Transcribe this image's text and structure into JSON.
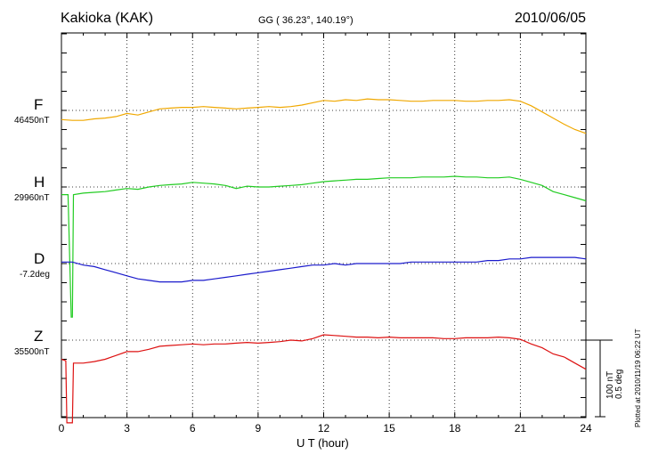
{
  "header": {
    "station": "Kakioka (KAK)",
    "coords": "GG ( 36.23°, 140.19°)",
    "date": "2010/06/05"
  },
  "footer": {
    "plotted": "Plotted at 2010/11/19 06:22 UT"
  },
  "scale_bar": {
    "label1": "100 nT",
    "label2": "0.5 deg"
  },
  "chart_data": {
    "type": "line",
    "xlabel": "U T (hour)",
    "xlim": [
      0,
      24
    ],
    "xticks": [
      "0",
      "3",
      "6",
      "9",
      "12",
      "15",
      "18",
      "21",
      "24"
    ],
    "grid": "dotted",
    "series": [
      {
        "name": "F",
        "baseline": "46450nT",
        "color": "#f0a800",
        "unit": "nT",
        "x": [
          0,
          0.5,
          1,
          1.5,
          2,
          2.5,
          3,
          3.5,
          4,
          4.5,
          5,
          5.5,
          6,
          6.5,
          7,
          7.5,
          8,
          8.5,
          9,
          9.5,
          10,
          10.5,
          11,
          11.5,
          12,
          12.5,
          13,
          13.5,
          14,
          14.5,
          15,
          15.5,
          16,
          16.5,
          17,
          17.5,
          18,
          18.5,
          19,
          19.5,
          20,
          20.5,
          21,
          21.5,
          22,
          22.5,
          23,
          23.5,
          24
        ],
        "y": [
          -12,
          -13,
          -13,
          -11,
          -10,
          -8,
          -4,
          -6,
          -2,
          2,
          3,
          4,
          4,
          5,
          4,
          3,
          2,
          3,
          4,
          5,
          4,
          5,
          7,
          10,
          13,
          12,
          14,
          13,
          15,
          14,
          14,
          13,
          12,
          12,
          13,
          13,
          13,
          12,
          12,
          13,
          13,
          14,
          12,
          6,
          -2,
          -10,
          -18,
          -25,
          -30
        ]
      },
      {
        "name": "H",
        "baseline": "29960nT",
        "color": "#22cc22",
        "unit": "nT",
        "x": [
          0,
          0.15,
          0.3,
          0.45,
          0.5,
          0.55,
          1,
          1.5,
          2,
          2.5,
          3,
          3.5,
          4,
          4.5,
          5,
          5.5,
          6,
          6.5,
          7,
          7.5,
          8,
          8.5,
          9,
          9.5,
          10,
          10.5,
          11,
          11.5,
          12,
          12.5,
          13,
          13.5,
          14,
          14.5,
          15,
          15.5,
          16,
          16.5,
          17,
          17.5,
          18,
          18.5,
          19,
          19.5,
          20,
          20.5,
          21,
          21.5,
          22,
          22.5,
          23,
          23.5,
          24
        ],
        "y": [
          -10,
          -10,
          -10,
          -170,
          -170,
          -10,
          -8,
          -7,
          -6,
          -4,
          -2,
          -3,
          0,
          2,
          3,
          4,
          6,
          5,
          4,
          2,
          -2,
          1,
          0,
          0,
          1,
          2,
          3,
          5,
          7,
          8,
          9,
          10,
          10,
          11,
          12,
          12,
          12,
          13,
          13,
          13,
          14,
          13,
          13,
          12,
          12,
          13,
          10,
          6,
          2,
          -6,
          -10,
          -14,
          -18
        ]
      },
      {
        "name": "D",
        "baseline": "-7.2deg",
        "color": "#1a1acc",
        "unit": "deg",
        "x": [
          0,
          0.5,
          1,
          1.5,
          2,
          2.5,
          3,
          3.5,
          4,
          4.5,
          5,
          5.5,
          6,
          6.5,
          7,
          7.5,
          8,
          8.5,
          9,
          9.5,
          10,
          10.5,
          11,
          11.5,
          12,
          12.5,
          13,
          13.5,
          14,
          14.5,
          15,
          15.5,
          16,
          16.5,
          17,
          17.5,
          18,
          18.5,
          19,
          19.5,
          20,
          20.5,
          21,
          21.5,
          22,
          22.5,
          23,
          23.5,
          24
        ],
        "y": [
          0.01,
          0.01,
          -0.01,
          -0.02,
          -0.04,
          -0.06,
          -0.08,
          -0.1,
          -0.11,
          -0.12,
          -0.12,
          -0.12,
          -0.11,
          -0.11,
          -0.1,
          -0.09,
          -0.08,
          -0.07,
          -0.06,
          -0.05,
          -0.04,
          -0.03,
          -0.02,
          -0.01,
          -0.01,
          0.0,
          -0.01,
          0.0,
          0.0,
          0.0,
          0.0,
          0.0,
          0.01,
          0.01,
          0.01,
          0.01,
          0.01,
          0.01,
          0.01,
          0.02,
          0.02,
          0.03,
          0.03,
          0.04,
          0.04,
          0.04,
          0.04,
          0.04,
          0.03
        ]
      },
      {
        "name": "Z",
        "baseline": "35500nT",
        "color": "#dd1111",
        "unit": "nT",
        "x": [
          0,
          0.2,
          0.25,
          0.5,
          0.55,
          1,
          1.5,
          2,
          2.5,
          3,
          3.5,
          4,
          4.5,
          5,
          5.5,
          6,
          6.5,
          7,
          7.5,
          8,
          8.5,
          9,
          9.5,
          10,
          10.5,
          11,
          11.5,
          12,
          12.5,
          13,
          13.5,
          14,
          14.5,
          15,
          15.5,
          16,
          16.5,
          17,
          17.5,
          18,
          18.5,
          19,
          19.5,
          20,
          20.5,
          21,
          21.5,
          22,
          22.5,
          23,
          23.5,
          24
        ],
        "y": [
          -25,
          -27,
          -108,
          -108,
          -30,
          -30,
          -28,
          -25,
          -20,
          -15,
          -15,
          -12,
          -8,
          -7,
          -6,
          -5,
          -6,
          -5,
          -5,
          -4,
          -3,
          -4,
          -3,
          -2,
          0,
          -1,
          2,
          7,
          6,
          5,
          4,
          4,
          3,
          4,
          3,
          3,
          3,
          3,
          2,
          2,
          3,
          3,
          3,
          4,
          3,
          1,
          -5,
          -10,
          -18,
          -22,
          -30,
          -38
        ]
      }
    ]
  }
}
